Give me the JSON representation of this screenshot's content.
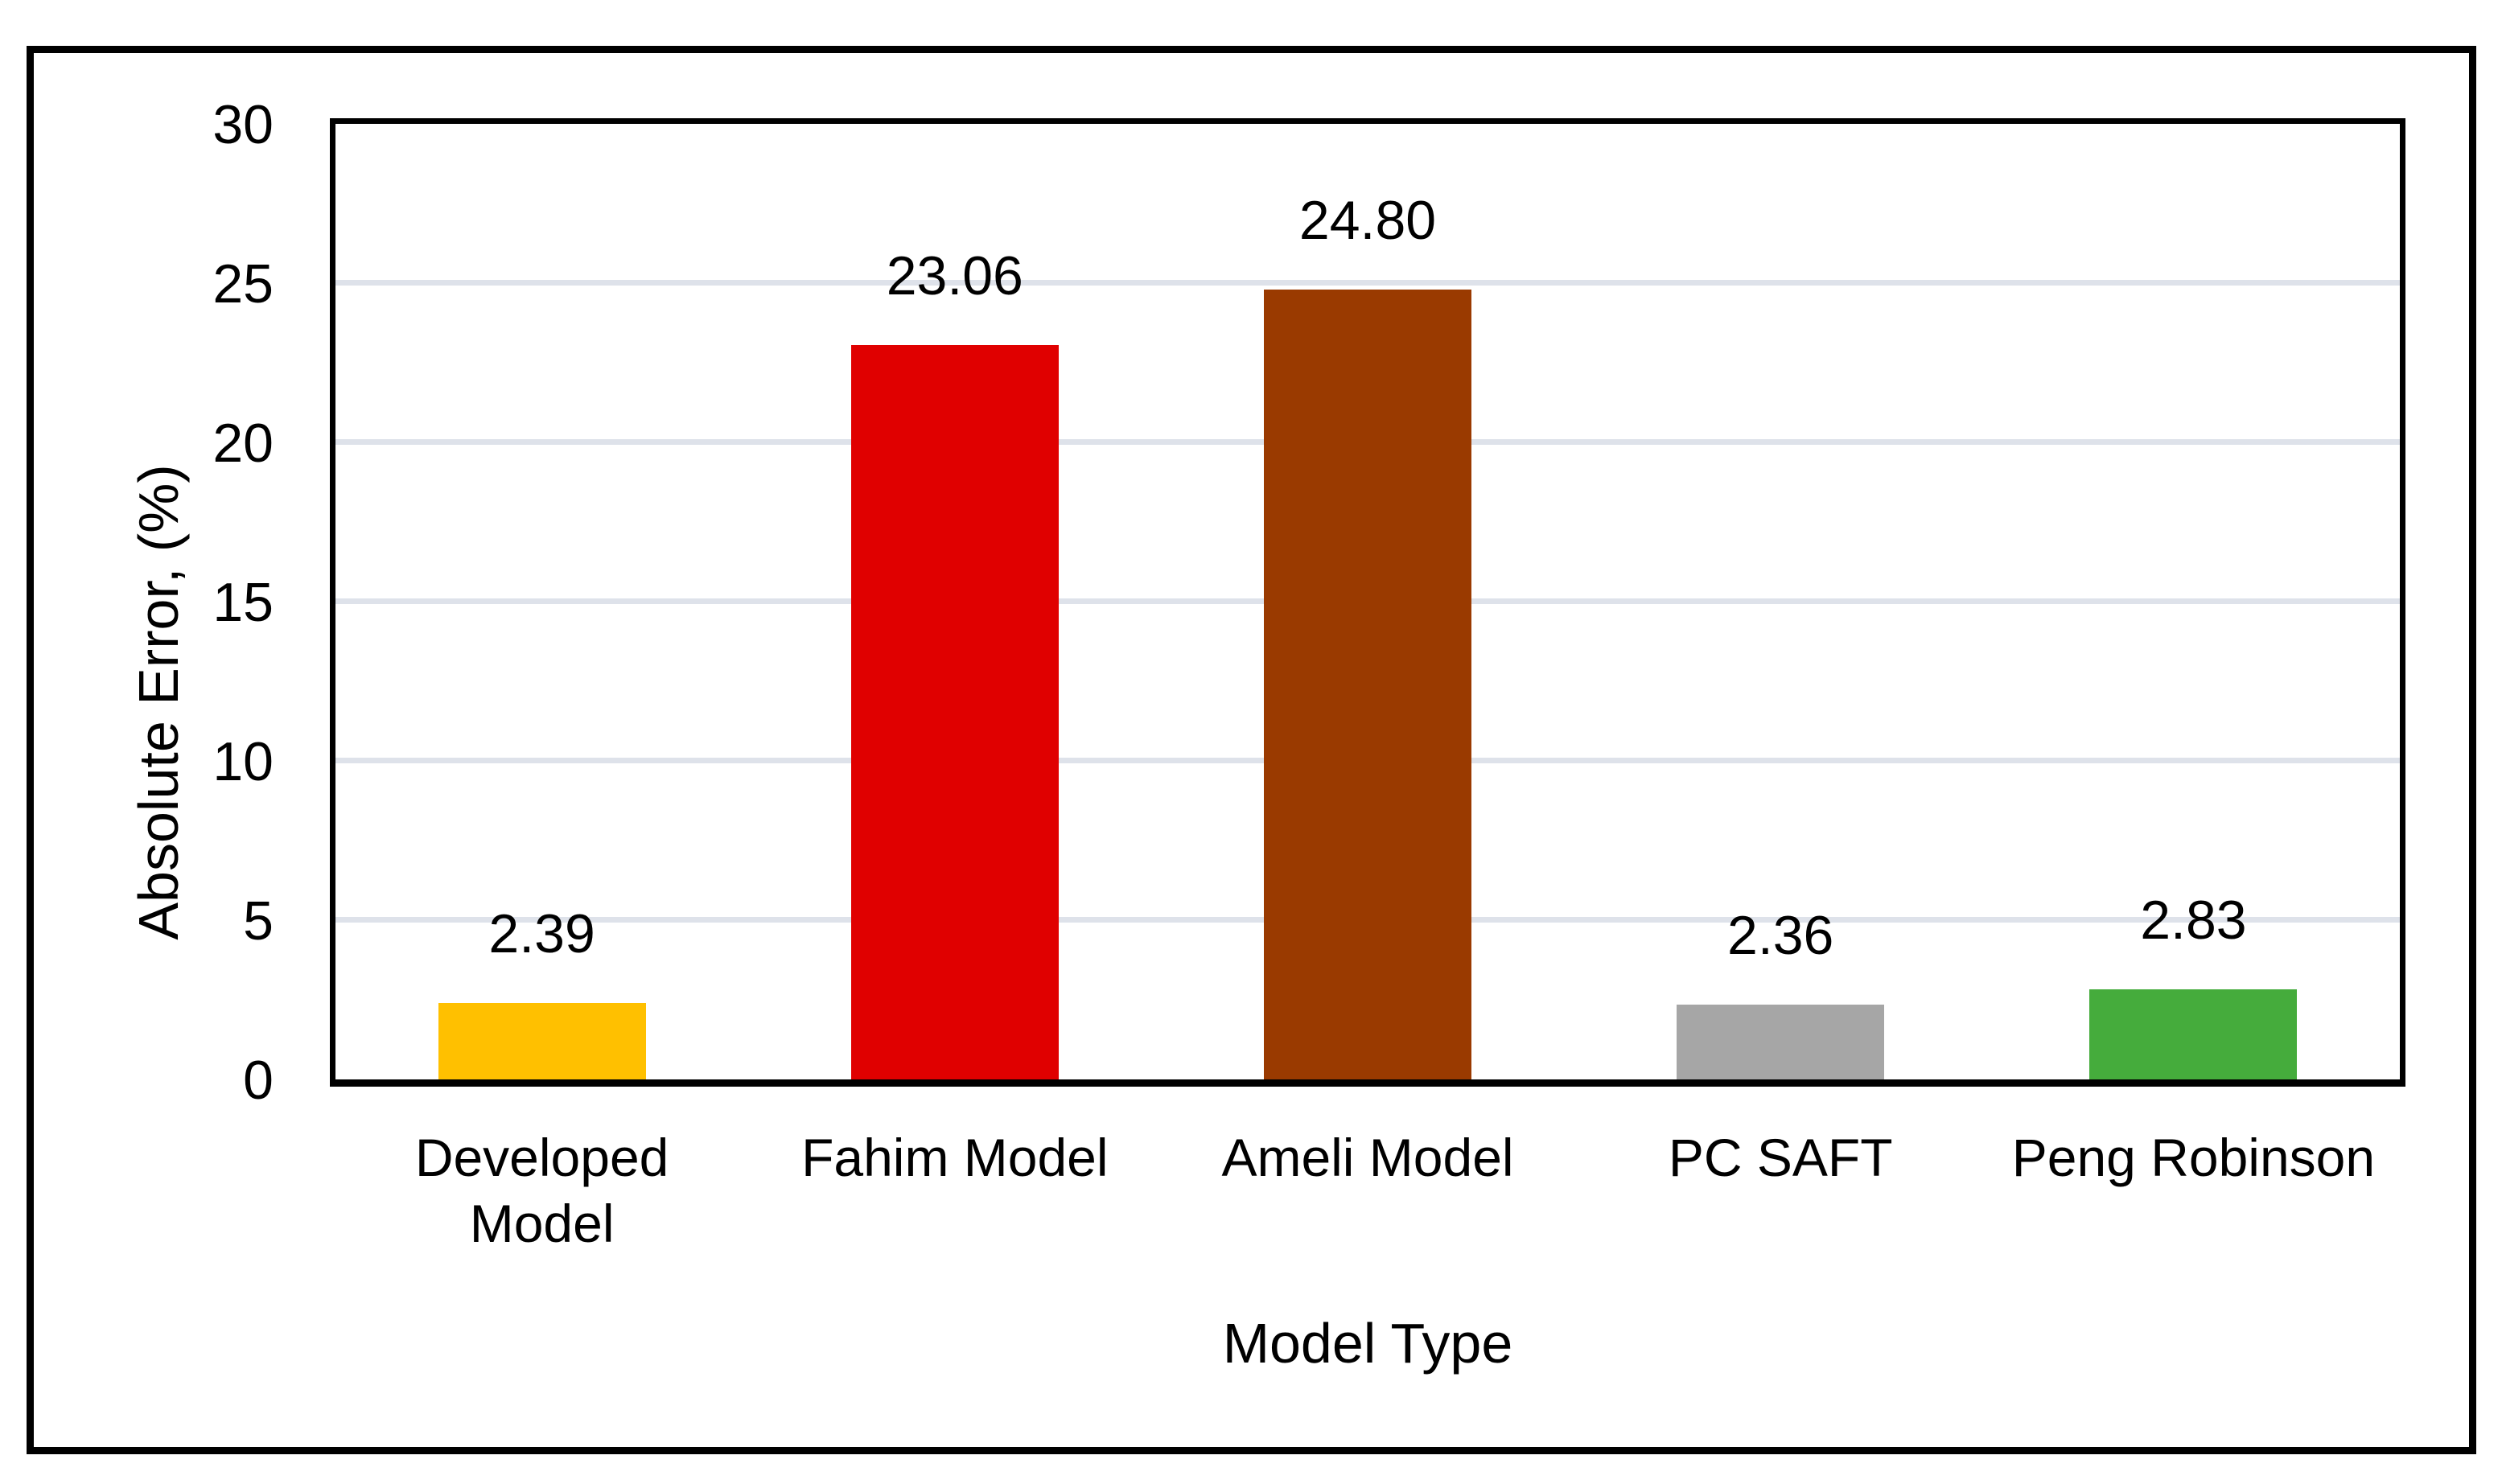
{
  "figure": {
    "background": "#FFFFFF",
    "frame_color": "#000000"
  },
  "chart_data": {
    "type": "bar",
    "title": "",
    "xlabel": "Model Type",
    "ylabel": "Absolute Error, (%)",
    "categories": [
      "Developed Model",
      "Fahim Model",
      "Ameli Model",
      "PC SAFT",
      "Peng Robinson"
    ],
    "values": [
      2.39,
      23.06,
      24.8,
      2.36,
      2.83
    ],
    "data_labels": [
      "2.39",
      "23.06",
      "24.80",
      "2.36",
      "2.83"
    ],
    "bar_colors": [
      "#FFC000",
      "#E00000",
      "#9A3A00",
      "#A6A6A6",
      "#45AC3C"
    ],
    "ylim": [
      0,
      30
    ],
    "ytick_interval": 5,
    "ytick_labels": [
      "0",
      "5",
      "10",
      "15",
      "20",
      "25",
      "30"
    ],
    "grid": "horizontal",
    "gridline_color": "#DEE2EA",
    "legend_position": "none"
  },
  "axes": {
    "x_title": "Model Type",
    "y_title": "Absolute Error, (%)",
    "category_display_lines": [
      [
        "Developed",
        "Model"
      ],
      [
        "Fahim Model"
      ],
      [
        "Ameli Model"
      ],
      [
        "PC SAFT"
      ],
      [
        "Peng Robinson"
      ]
    ]
  }
}
